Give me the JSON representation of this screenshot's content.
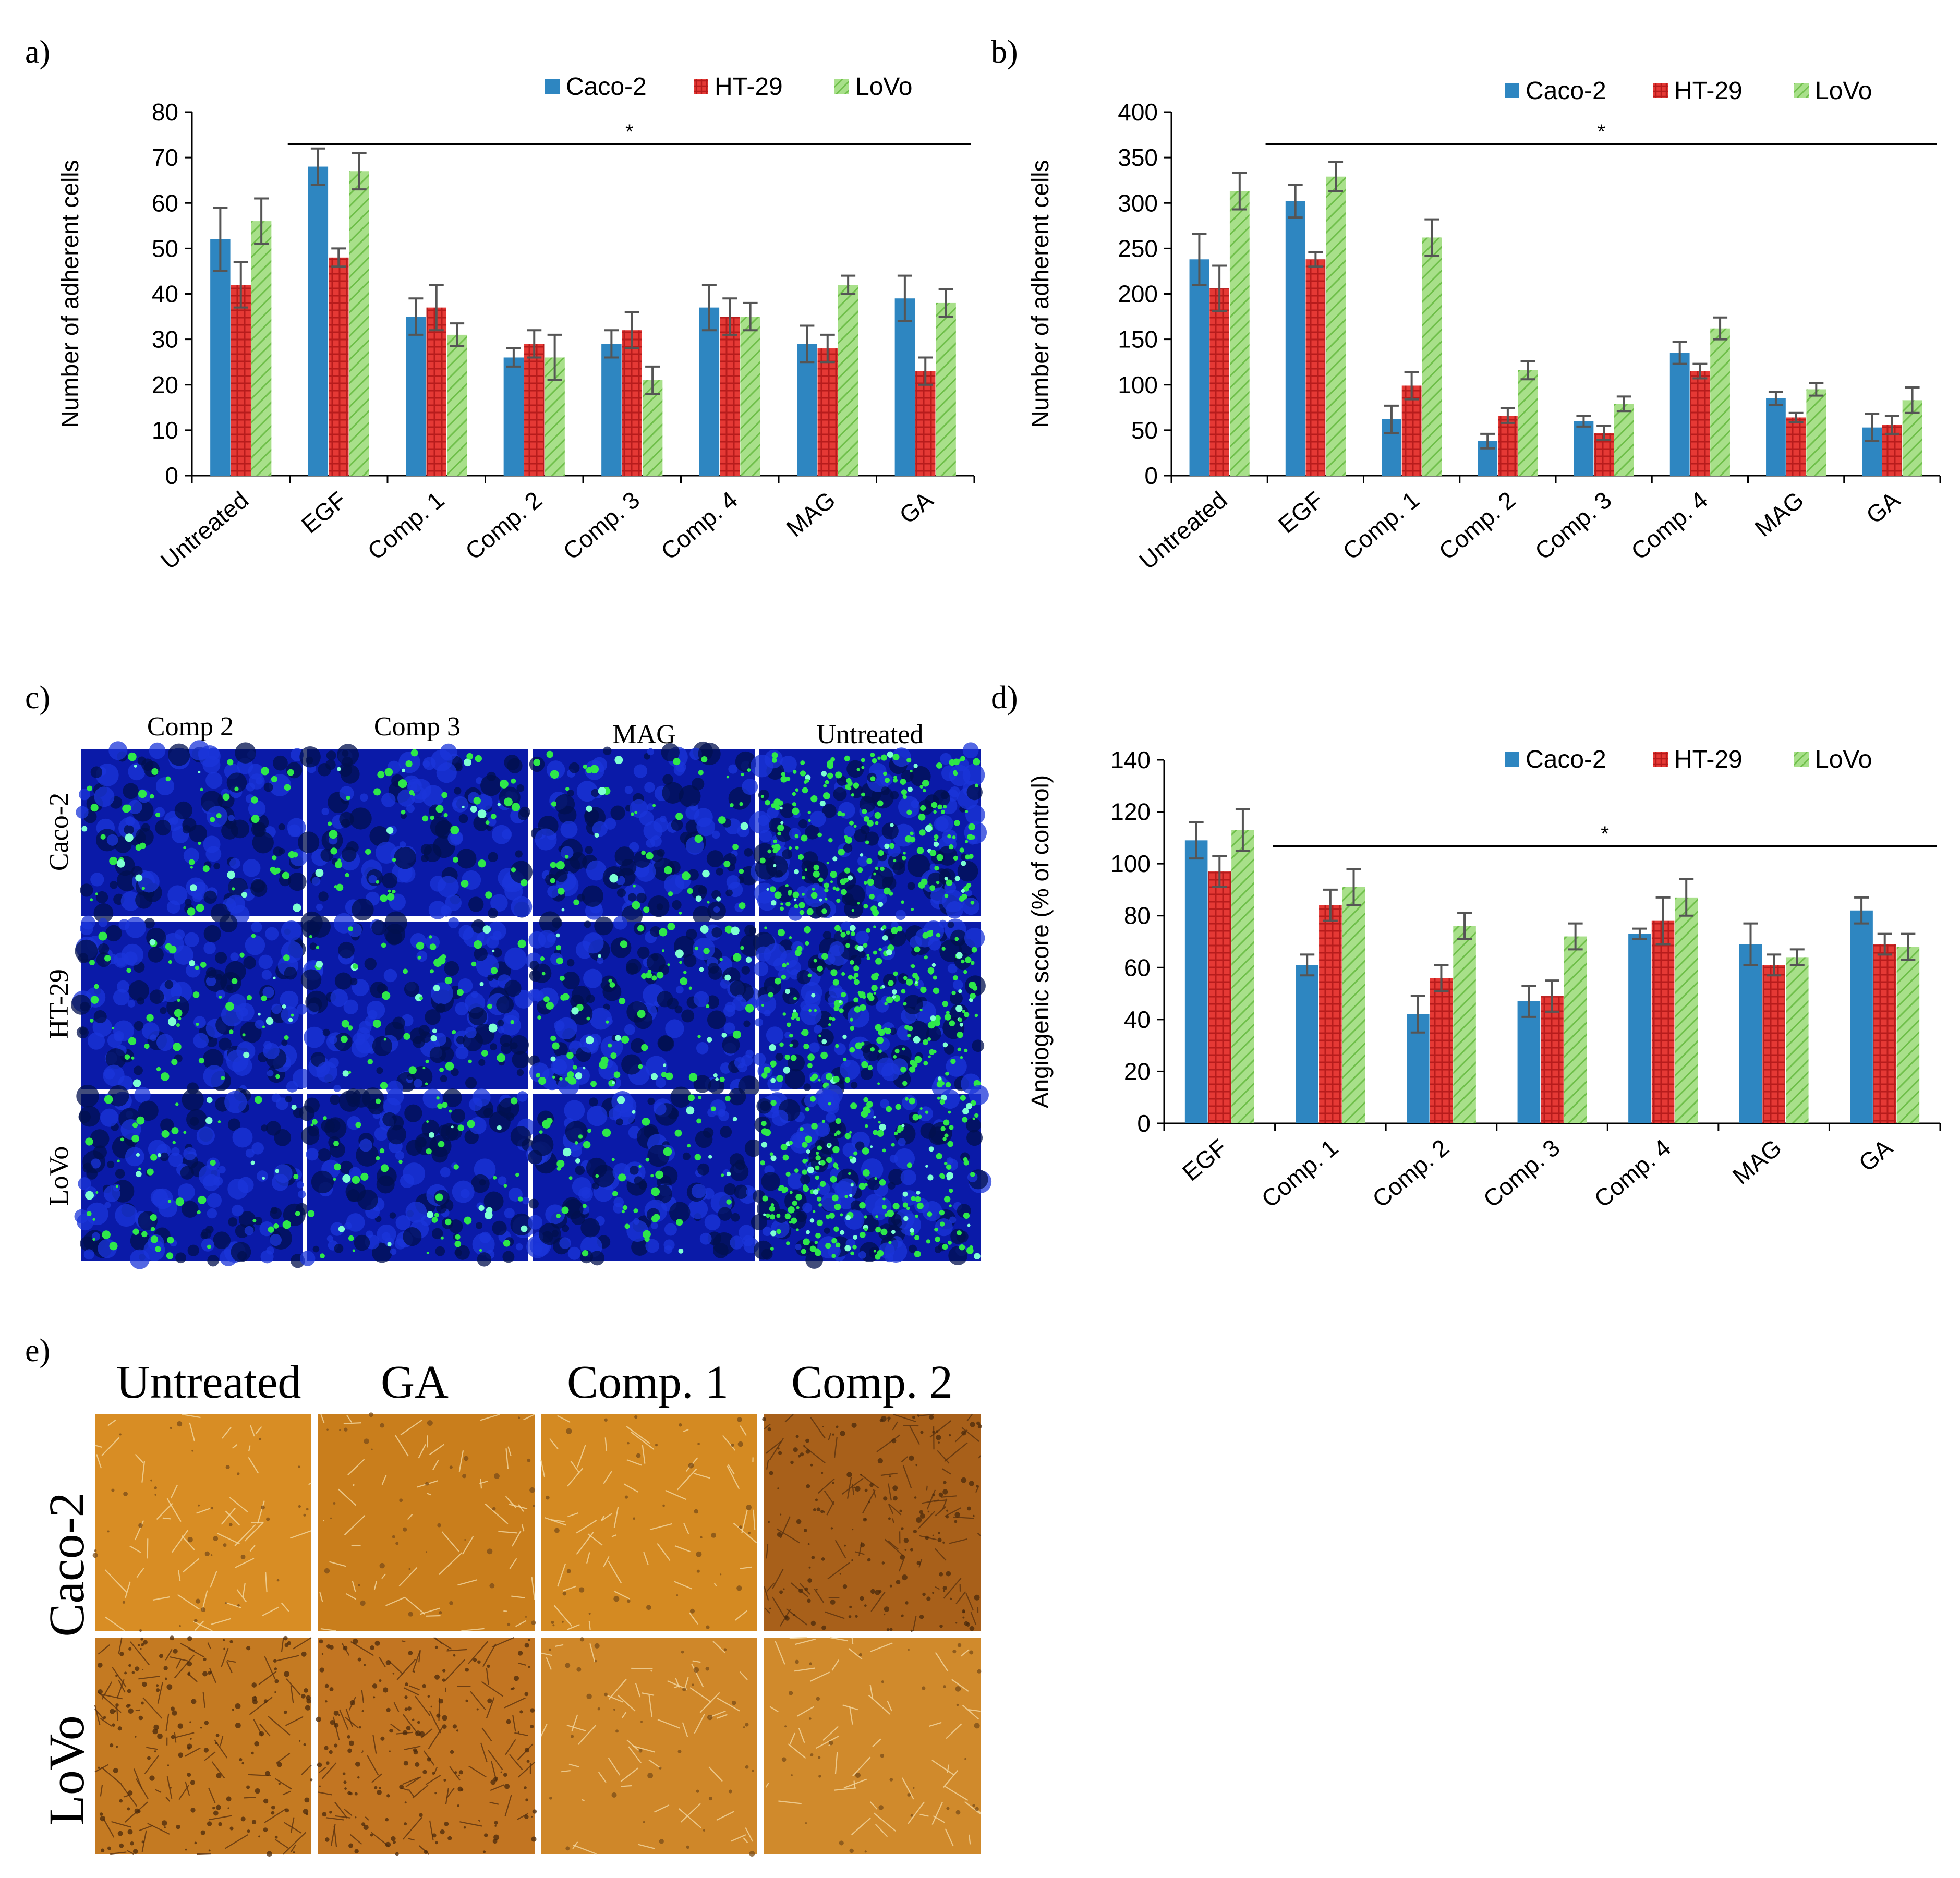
{
  "colors": {
    "caco2": "#2e86c1",
    "ht29": "#e53935",
    "lovo": "#8fd16a",
    "axis": "#000000",
    "error_bar": "#555555"
  },
  "panel_labels": [
    "a)",
    "b)",
    "c)",
    "d)",
    "e)"
  ],
  "chart_data": [
    {
      "panel": "a)",
      "type": "bar",
      "title": "",
      "xlabel": "",
      "ylabel": "Number of adherent cells",
      "ylim": [
        0,
        80
      ],
      "yticks": [
        0,
        10,
        20,
        30,
        40,
        50,
        60,
        70,
        80
      ],
      "categories": [
        "Untreated",
        "EGF",
        "Comp. 1",
        "Comp. 2",
        "Comp. 3",
        "Comp. 4",
        "MAG",
        "GA"
      ],
      "series": [
        {
          "name": "Caco-2",
          "values": [
            52,
            68,
            35,
            26,
            29,
            37,
            29,
            39
          ],
          "errors": [
            7,
            4,
            4,
            2,
            3,
            5,
            4,
            5
          ]
        },
        {
          "name": "HT-29",
          "values": [
            42,
            48,
            37,
            29,
            32,
            35,
            28,
            23
          ],
          "errors": [
            5,
            2,
            5,
            3,
            4,
            4,
            3,
            3
          ]
        },
        {
          "name": "LoVo",
          "values": [
            56,
            67,
            31,
            26,
            21,
            35,
            42,
            38
          ],
          "errors": [
            5,
            4,
            2.5,
            5,
            3,
            3,
            2,
            3
          ]
        }
      ],
      "legend": "top-right",
      "significance": {
        "label": "*",
        "from_category": 1,
        "to_category": 7
      }
    },
    {
      "panel": "b)",
      "type": "bar",
      "title": "",
      "xlabel": "",
      "ylabel": "Number of adherent cells",
      "ylim": [
        0,
        400
      ],
      "yticks": [
        0,
        50,
        100,
        150,
        200,
        250,
        300,
        350,
        400
      ],
      "categories": [
        "Untreated",
        "EGF",
        "Comp. 1",
        "Comp. 2",
        "Comp. 3",
        "Comp. 4",
        "MAG",
        "GA"
      ],
      "series": [
        {
          "name": "Caco-2",
          "values": [
            238,
            302,
            62,
            38,
            60,
            135,
            85,
            53
          ],
          "errors": [
            28,
            18,
            15,
            8,
            6,
            12,
            7,
            15
          ]
        },
        {
          "name": "HT-29",
          "values": [
            206,
            238,
            99,
            66,
            47,
            115,
            64,
            56
          ],
          "errors": [
            25,
            8,
            15,
            8,
            8,
            8,
            5,
            10
          ]
        },
        {
          "name": "LoVo",
          "values": [
            313,
            329,
            262,
            116,
            79,
            162,
            95,
            83
          ],
          "errors": [
            20,
            16,
            20,
            10,
            8,
            12,
            7,
            14
          ]
        }
      ],
      "legend": "top-right",
      "significance": {
        "label": "*",
        "from_category": 1,
        "to_category": 7
      }
    },
    {
      "panel": "d)",
      "type": "bar",
      "title": "",
      "xlabel": "",
      "ylabel": "Angiogenic score (% of control)",
      "ylim": [
        0,
        140
      ],
      "yticks": [
        0,
        20,
        40,
        60,
        80,
        100,
        120,
        140
      ],
      "categories": [
        "EGF",
        "Comp. 1",
        "Comp. 2",
        "Comp. 3",
        "Comp. 4",
        "MAG",
        "GA"
      ],
      "series": [
        {
          "name": "Caco-2",
          "values": [
            109,
            61,
            42,
            47,
            73,
            69,
            82
          ],
          "errors": [
            7,
            4,
            7,
            6,
            2,
            8,
            5
          ]
        },
        {
          "name": "HT-29",
          "values": [
            97,
            84,
            56,
            49,
            78,
            61,
            69
          ],
          "errors": [
            6,
            6,
            5,
            6,
            9,
            4,
            4
          ]
        },
        {
          "name": "LoVo",
          "values": [
            113,
            91,
            76,
            72,
            87,
            64,
            68
          ],
          "errors": [
            8,
            7,
            5,
            5,
            7,
            3,
            5
          ]
        }
      ],
      "legend": "top-right",
      "significance": {
        "label": "*",
        "from_category": 1,
        "to_category": 6
      }
    }
  ],
  "panel_c": {
    "columns": [
      "Comp 2",
      "Comp 3",
      "MAG",
      "Untreated"
    ],
    "rows": [
      "Caco-2",
      "HT-29",
      "LoVo"
    ]
  },
  "panel_e": {
    "columns": [
      "Untreated",
      "GA",
      "Comp. 1",
      "Comp. 2"
    ],
    "rows": [
      "Caco-2",
      "LoVo"
    ]
  }
}
